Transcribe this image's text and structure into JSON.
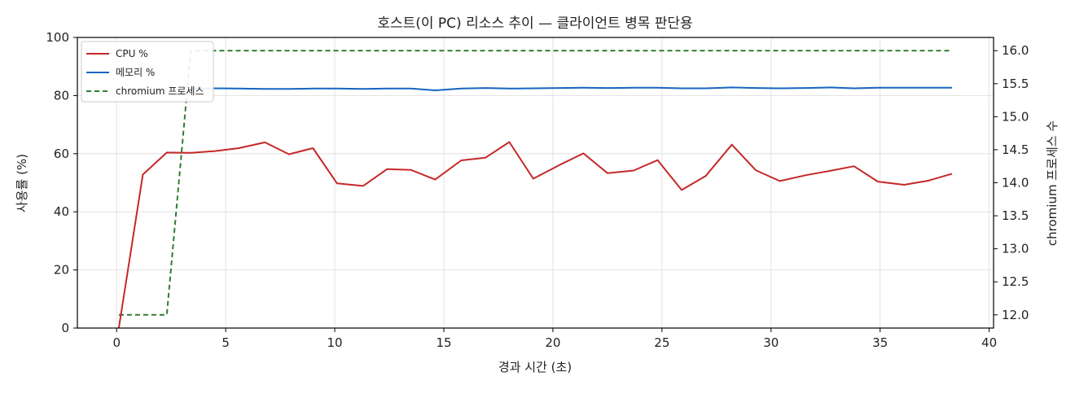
{
  "chart_data": {
    "type": "line",
    "title": "호스트(이 PC) 리소스 추이 — 클라이언트 병목 판단용",
    "xlabel": "경과 시간 (초)",
    "ylabel": "사용률 (%)",
    "y2label": "chromium 프로세스 수",
    "xlim": [
      -1.8,
      40.2
    ],
    "ylim": [
      0,
      100
    ],
    "y2lim": [
      11.8,
      16.2
    ],
    "xticks": [
      "0",
      "5",
      "10",
      "15",
      "20",
      "25",
      "30",
      "35",
      "40"
    ],
    "yticks": [
      "0",
      "20",
      "40",
      "60",
      "80",
      "100"
    ],
    "y2ticks": [
      "12.0",
      "12.5",
      "13.0",
      "13.5",
      "14.0",
      "14.5",
      "15.0",
      "15.5",
      "16.0"
    ],
    "grid": true,
    "legend_position": "top-left",
    "series": [
      {
        "name": "CPU %",
        "axis": "left",
        "color": "#c62828",
        "style": "solid",
        "x": [
          0.1,
          1.2,
          2.3,
          3.4,
          4.5,
          5.6,
          6.8,
          7.9,
          9.0,
          10.1,
          11.3,
          12.4,
          13.5,
          14.6,
          15.8,
          16.9,
          18.0,
          19.1,
          20.3,
          21.4,
          22.5,
          23.7,
          24.8,
          25.9,
          27.0,
          28.2,
          29.3,
          30.4,
          31.6,
          32.7,
          33.8,
          34.9,
          36.1,
          37.2,
          38.3
        ],
        "y": [
          0,
          52.8,
          60.4,
          60.3,
          60.9,
          61.9,
          63.9,
          59.8,
          61.9,
          49.8,
          48.9,
          54.7,
          54.4,
          51.1,
          57.7,
          58.6,
          64.0,
          51.4,
          56.1,
          60.1,
          53.3,
          54.2,
          57.8,
          47.5,
          52.3,
          63.1,
          54.3,
          50.6,
          52.6,
          54.1,
          55.7,
          50.4,
          49.3,
          50.7,
          53.1
        ]
      },
      {
        "name": "메모리 %",
        "axis": "left",
        "color": "#1565c0",
        "style": "solid",
        "x": [
          3.4,
          4.5,
          5.6,
          6.8,
          7.9,
          9.0,
          10.1,
          11.3,
          12.4,
          13.5,
          14.6,
          15.8,
          16.9,
          18.0,
          19.1,
          20.3,
          21.4,
          22.5,
          23.7,
          24.8,
          25.9,
          27.0,
          28.2,
          29.3,
          30.4,
          31.6,
          32.7,
          33.8,
          34.9,
          36.1,
          37.2,
          38.3
        ],
        "y": [
          82.4,
          82.5,
          82.4,
          82.3,
          82.3,
          82.4,
          82.4,
          82.3,
          82.4,
          82.4,
          81.8,
          82.4,
          82.6,
          82.4,
          82.5,
          82.6,
          82.7,
          82.6,
          82.7,
          82.7,
          82.5,
          82.5,
          82.8,
          82.6,
          82.5,
          82.6,
          82.8,
          82.5,
          82.7,
          82.7,
          82.7,
          82.7
        ]
      },
      {
        "name": "chromium 프로세스",
        "axis": "right",
        "color": "#2e7d32",
        "style": "dashed",
        "x": [
          0.1,
          1.2,
          2.3,
          3.4,
          38.3
        ],
        "y": [
          12,
          12,
          12,
          16,
          16
        ]
      }
    ]
  }
}
